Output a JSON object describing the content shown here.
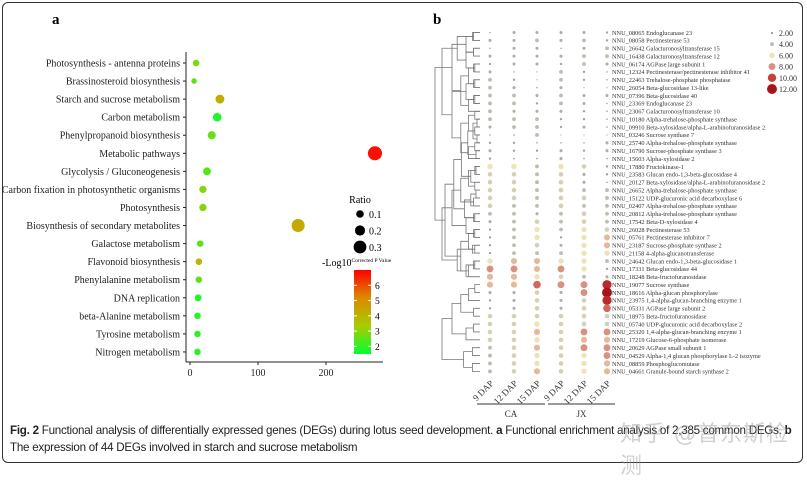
{
  "figure": {
    "caption": {
      "fig_label": "Fig. 2",
      "text1": " Functional analysis of differentially expressed genes (DEGs) during lotus seed development. ",
      "a_label": "a",
      "text2": " Functional enrichment analysis of 2,385 common DEGs. ",
      "b_label": "b",
      "text3": " The expression of 44 DEGs involved in starch and sucrose metabolism"
    },
    "watermark": "知乎 @普东斯检测"
  },
  "chart_data": [
    {
      "panel": "a",
      "type": "scatter",
      "categories": [
        "Photosynthesis - antenna proteins",
        "Brassinosteroid biosynthesis",
        "Starch and sucrose metabolism",
        "Carbon metabolism",
        "Phenylpropanoid biosynthesis",
        "Metabolic pathways",
        "Glycolysis / Gluconeogenesis",
        "Carbon fixation in photosynthetic organisms",
        "Photosynthesis",
        "Biosynthesis of secondary metabolites",
        "Galactose metabolism",
        "Flavonoid biosynthesis",
        "Phenylalanine metabolism",
        "DNA replication",
        "beta-Alanine metabolism",
        "Tyrosine metabolism",
        "Nitrogen metabolism"
      ],
      "x": [
        9,
        6,
        44,
        40,
        32,
        272,
        25,
        19,
        19,
        159,
        15,
        13,
        13,
        12,
        11,
        11,
        11
      ],
      "ratio": [
        0.06,
        0.02,
        0.15,
        0.14,
        0.12,
        0.35,
        0.11,
        0.09,
        0.09,
        0.31,
        0.06,
        0.06,
        0.06,
        0.07,
        0.06,
        0.06,
        0.06
      ],
      "neg_log10_p": [
        2.8,
        2.5,
        4.2,
        1.8,
        2.7,
        6.8,
        2.4,
        3.0,
        3.0,
        4.3,
        2.5,
        4.0,
        2.6,
        1.8,
        1.9,
        2.0,
        2.0
      ],
      "xlim": [
        -10,
        280
      ],
      "xticks": [
        "0",
        "100",
        "200"
      ],
      "size_legend": {
        "title": "Ratio",
        "values": [
          "0.1",
          "0.2",
          "0.3"
        ]
      },
      "color_legend": {
        "title": "-Log10",
        "title_sup": "Corrected P Value",
        "ticks": [
          "6",
          "5",
          "4",
          "3",
          "2"
        ],
        "range": [
          1.5,
          7
        ],
        "colors": [
          "#00ff33",
          "#a8cc00",
          "#dc8a00",
          "#ff0000"
        ]
      },
      "grid": false
    },
    {
      "panel": "b",
      "type": "heatmap",
      "columns": [
        "9 DAP",
        "12 DAP",
        "15 DAP",
        "9 DAP",
        "12 DAP",
        "15 DAP"
      ],
      "groups": [
        {
          "name": "CA",
          "span": 3
        },
        {
          "name": "JX",
          "span": 3
        }
      ],
      "rows": [
        "NNU_08065 Endoglucanase 23",
        "NNU_08058 Pectinesterase 53",
        "NNU_26642 Galacturonosyltransferase 15",
        "NNU_16438 Galacturonosyltransferase 12",
        "NNU_06174 AGPase large subunit 1",
        "NNU_12324 Pectinesterase/pectinesterase inhibitor 41",
        "NNU_22463 Trehalose-phosphate phosphatase",
        "NNU_26054 Beta-glucosidase 13-like",
        "NNU_07396 Beta-glucosidase 40",
        "NNU_23369 Endoglucanase 23",
        "NNU_23067 Galacturonosyltransferase 10",
        "NNU_10180 Alpha-trehalose-phosphate synthase",
        "NNU_09910 Beta-xylosidase/alpha-L-arabinofuranosidase 2",
        "NNU_03246 Sucrose synthase 7",
        "NNU_25740 Alpha-trehalose-phosphate synthase",
        "NNU_16790 Sucrose-phosphate synthase 3",
        "NNU_15603 Alpha-xylosidase 2",
        "NNU_17880 Fructokinase-1",
        "NNU_23583 Glucan endo-1,3-beta-glucosidase 4",
        "NNU_20127 Beta-xylosidase/alpha-L-arabinofuranosidase 2",
        "NNU_26652 Alpha-trehalose-phosphate synthase",
        "NNU_15122 UDP-glucuronic acid decarboxylase 6",
        "NNU_02407 Alpha-trehalose-phosphate synthase",
        "NNU_20812 Alpha-trehalose-phosphate synthase",
        "NNU_17542 Beta-D-xylosidase 4",
        "NNU_26028 Pectinesterase 53",
        "NNU_05761 Pectinesterase inhibitor 7",
        "NNU_23187 Sucrose-phosphate synthase 2",
        "NNU_21158 4-alpha-glucanotransferase",
        "NNU_24642 Glucan endo-1,3-beta-glucosidase 1",
        "NNU_17331 Beta-glucosidase 44",
        "NNU_18248 Beta-fructofuranosidase",
        "NNU_19077 Sucrose synthase",
        "NNU_18616 Alpha-glucan phosphorylase",
        "NNU_23975 1,4-alpha-glucan-branching enzyme 1",
        "NNU_05331 AGPase large subunit 2",
        "NNU_18975 Beta-fructofuranosidase",
        "NNU_05740 UDP-glucuronic acid decarboxylase 2",
        "NNU_25320 1,4-alpha-glucan-branching enzyme 1",
        "NNU_17219 Glucose-6-phosphate isomerase",
        "NNU_20629 AGPase small subunit 1",
        "NNU_04529 Alpha-1,4 glucan phosphorylase L-2 isozyme",
        "NNU_08859 Phosphoglucomutase",
        "NNU_04661 Granule-bound starch synthase 2"
      ],
      "values": [
        [
          1,
          3,
          3,
          3,
          3,
          2
        ],
        [
          3,
          3,
          4,
          3,
          4,
          2
        ],
        [
          1,
          3,
          3,
          1,
          3,
          4
        ],
        [
          3,
          3,
          3,
          3,
          4,
          4
        ],
        [
          2,
          3,
          3,
          2,
          4,
          3
        ],
        [
          3,
          1,
          0.5,
          4,
          2,
          1
        ],
        [
          4,
          2,
          0.5,
          4,
          2,
          1
        ],
        [
          4,
          3,
          1,
          3,
          0.5,
          0.5
        ],
        [
          4,
          4,
          3,
          4,
          3,
          3
        ],
        [
          4,
          4,
          2,
          4,
          3,
          1
        ],
        [
          4,
          3,
          3,
          3,
          2,
          1
        ],
        [
          4,
          4,
          4,
          2,
          2,
          1
        ],
        [
          3,
          4,
          4,
          2,
          3,
          1
        ],
        [
          1,
          1,
          4,
          0.5,
          0.5,
          0.5
        ],
        [
          2,
          2,
          1,
          1,
          1,
          3
        ],
        [
          3,
          2,
          2,
          3,
          2,
          3
        ],
        [
          2,
          1,
          1,
          3,
          1,
          1
        ],
        [
          6,
          6,
          4,
          6,
          5,
          2
        ],
        [
          5,
          5,
          4,
          5,
          3,
          2
        ],
        [
          5,
          5,
          4,
          5,
          3,
          1
        ],
        [
          5,
          5,
          4,
          5,
          4,
          4
        ],
        [
          5,
          5,
          4,
          5,
          5,
          4
        ],
        [
          5,
          4,
          4,
          5,
          4,
          4
        ],
        [
          4,
          4,
          3,
          4,
          5,
          4
        ],
        [
          3,
          4,
          5,
          4,
          5,
          4
        ],
        [
          2,
          4,
          6,
          4,
          6,
          5
        ],
        [
          2,
          4,
          6,
          2,
          6,
          7
        ],
        [
          2,
          4,
          5,
          3,
          6,
          7
        ],
        [
          2,
          4,
          4,
          4,
          6,
          6
        ],
        [
          6,
          7,
          7,
          6,
          6,
          4
        ],
        [
          8,
          8,
          7,
          8,
          6,
          2
        ],
        [
          7,
          7,
          6,
          5,
          4,
          3
        ],
        [
          7,
          7,
          9,
          8,
          8,
          11
        ],
        [
          3,
          3,
          5,
          3,
          8,
          12
        ],
        [
          2,
          3,
          5,
          3,
          5,
          11
        ],
        [
          2,
          3,
          5,
          3,
          5,
          9
        ],
        [
          5,
          5,
          5,
          5,
          5,
          5
        ],
        [
          5,
          5,
          6,
          5,
          5,
          5
        ],
        [
          5,
          5,
          7,
          5,
          8,
          8
        ],
        [
          5,
          5,
          6,
          5,
          7,
          7
        ],
        [
          4,
          5,
          7,
          5,
          8,
          8
        ],
        [
          4,
          5,
          6,
          5,
          6,
          8
        ],
        [
          4,
          5,
          6,
          5,
          6,
          7
        ],
        [
          4,
          5,
          7,
          5,
          6,
          7
        ]
      ],
      "legend": {
        "values": [
          "2.00",
          "4.00",
          "6.00",
          "8.00",
          "10.00",
          "12.00"
        ],
        "colors": [
          "#a0a0a0",
          "#bdbdb0",
          "#efe2b6",
          "#d9907e",
          "#c9403a",
          "#a8141a"
        ]
      },
      "dendrogram": true
    }
  ],
  "panel_labels": {
    "a": "a",
    "b": "b"
  }
}
